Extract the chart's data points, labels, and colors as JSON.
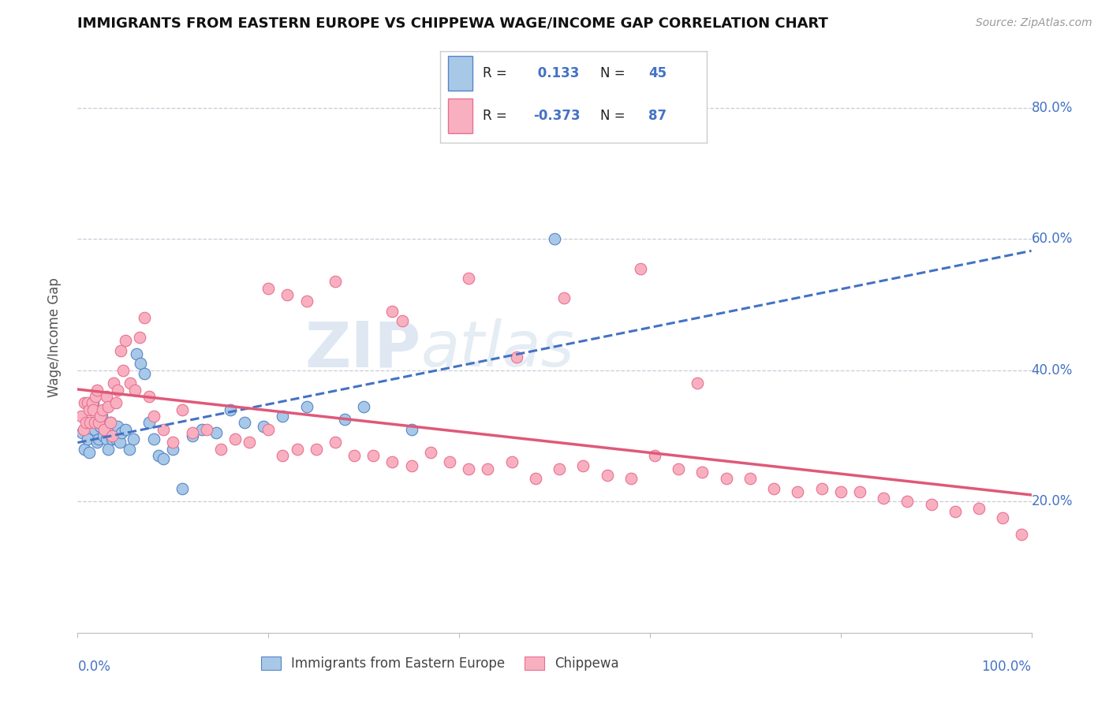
{
  "title": "IMMIGRANTS FROM EASTERN EUROPE VS CHIPPEWA WAGE/INCOME GAP CORRELATION CHART",
  "source": "Source: ZipAtlas.com",
  "ylabel": "Wage/Income Gap",
  "x_range": [
    0.0,
    1.0
  ],
  "y_range": [
    0.0,
    0.9
  ],
  "y_ticks": [
    0.2,
    0.4,
    0.6,
    0.8
  ],
  "y_tick_labels": [
    "20.0%",
    "40.0%",
    "60.0%",
    "80.0%"
  ],
  "blue_R": 0.133,
  "blue_N": 45,
  "pink_R": -0.373,
  "pink_N": 87,
  "blue_marker_color": "#a8c8e8",
  "blue_edge_color": "#5585c5",
  "pink_marker_color": "#f8b0c0",
  "pink_edge_color": "#e87090",
  "blue_line_color": "#4472c4",
  "pink_line_color": "#e05878",
  "watermark_color": "#d8e4f0",
  "grid_color": "#c8ccd8",
  "background_color": "#ffffff",
  "axis_tick_color": "#4472c4",
  "title_color": "#111111",
  "source_color": "#999999",
  "legend_label_blue": "Immigrants from Eastern Europe",
  "legend_label_pink": "Chippewa",
  "blue_scatter_x": [
    0.005,
    0.007,
    0.01,
    0.012,
    0.015,
    0.016,
    0.018,
    0.02,
    0.022,
    0.024,
    0.025,
    0.027,
    0.03,
    0.032,
    0.034,
    0.036,
    0.038,
    0.04,
    0.042,
    0.044,
    0.046,
    0.05,
    0.054,
    0.058,
    0.062,
    0.066,
    0.07,
    0.075,
    0.08,
    0.085,
    0.09,
    0.1,
    0.11,
    0.12,
    0.13,
    0.145,
    0.16,
    0.175,
    0.195,
    0.215,
    0.24,
    0.28,
    0.3,
    0.35,
    0.5
  ],
  "blue_scatter_y": [
    0.305,
    0.28,
    0.295,
    0.275,
    0.32,
    0.35,
    0.31,
    0.29,
    0.295,
    0.315,
    0.33,
    0.3,
    0.295,
    0.28,
    0.32,
    0.295,
    0.31,
    0.295,
    0.315,
    0.29,
    0.305,
    0.31,
    0.28,
    0.295,
    0.425,
    0.41,
    0.395,
    0.32,
    0.295,
    0.27,
    0.265,
    0.28,
    0.22,
    0.3,
    0.31,
    0.305,
    0.34,
    0.32,
    0.315,
    0.33,
    0.345,
    0.325,
    0.345,
    0.31,
    0.6
  ],
  "pink_scatter_x": [
    0.004,
    0.006,
    0.007,
    0.009,
    0.01,
    0.012,
    0.013,
    0.015,
    0.016,
    0.018,
    0.019,
    0.02,
    0.022,
    0.024,
    0.026,
    0.028,
    0.03,
    0.032,
    0.034,
    0.036,
    0.038,
    0.04,
    0.042,
    0.045,
    0.048,
    0.05,
    0.055,
    0.06,
    0.065,
    0.07,
    0.075,
    0.08,
    0.09,
    0.1,
    0.11,
    0.12,
    0.135,
    0.15,
    0.165,
    0.18,
    0.2,
    0.215,
    0.23,
    0.25,
    0.27,
    0.29,
    0.31,
    0.33,
    0.35,
    0.37,
    0.39,
    0.41,
    0.43,
    0.455,
    0.48,
    0.505,
    0.53,
    0.555,
    0.58,
    0.605,
    0.63,
    0.655,
    0.68,
    0.705,
    0.73,
    0.755,
    0.78,
    0.8,
    0.82,
    0.845,
    0.87,
    0.895,
    0.92,
    0.945,
    0.97,
    0.99,
    0.2,
    0.22,
    0.24,
    0.27,
    0.33,
    0.34,
    0.41,
    0.46,
    0.51,
    0.59,
    0.65
  ],
  "pink_scatter_y": [
    0.33,
    0.31,
    0.35,
    0.32,
    0.35,
    0.34,
    0.32,
    0.35,
    0.34,
    0.32,
    0.36,
    0.37,
    0.32,
    0.33,
    0.34,
    0.31,
    0.36,
    0.345,
    0.32,
    0.3,
    0.38,
    0.35,
    0.37,
    0.43,
    0.4,
    0.445,
    0.38,
    0.37,
    0.45,
    0.48,
    0.36,
    0.33,
    0.31,
    0.29,
    0.34,
    0.305,
    0.31,
    0.28,
    0.295,
    0.29,
    0.31,
    0.27,
    0.28,
    0.28,
    0.29,
    0.27,
    0.27,
    0.26,
    0.255,
    0.275,
    0.26,
    0.25,
    0.25,
    0.26,
    0.235,
    0.25,
    0.255,
    0.24,
    0.235,
    0.27,
    0.25,
    0.245,
    0.235,
    0.235,
    0.22,
    0.215,
    0.22,
    0.215,
    0.215,
    0.205,
    0.2,
    0.195,
    0.185,
    0.19,
    0.175,
    0.15,
    0.525,
    0.515,
    0.505,
    0.535,
    0.49,
    0.475,
    0.54,
    0.42,
    0.51,
    0.555,
    0.38
  ]
}
